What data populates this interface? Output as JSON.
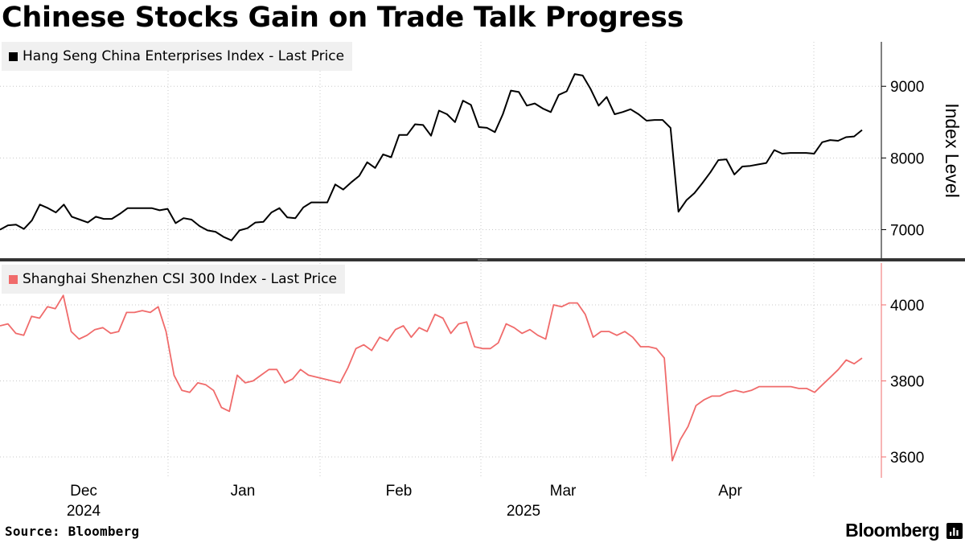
{
  "title": "Chinese Stocks Gain on Trade Talk Progress",
  "source": "Source: Bloomberg",
  "brand": "Bloomberg",
  "colors": {
    "hscei": "#000000",
    "csi300": "#f06b6b",
    "grid": "#c8c8c8",
    "legend_bg": "#f0f0f0"
  },
  "chart_data": [
    {
      "type": "line",
      "legend": "Hang Seng China Enterprises Index - Last Price",
      "ylabel": "Index Level",
      "y_ticks": [
        7000,
        8000,
        9000
      ],
      "y_tick_labels": [
        "7000",
        "8000",
        "9000"
      ],
      "ylim": [
        6590,
        9620
      ],
      "x_month_labels": [
        "Dec",
        "Jan",
        "Feb",
        "Mar",
        "Apr"
      ],
      "x_year_labels": [
        "2024",
        "2025"
      ],
      "values": [
        7000,
        7060,
        7070,
        7010,
        7130,
        7350,
        7300,
        7240,
        7350,
        7180,
        7140,
        7100,
        7180,
        7150,
        7150,
        7220,
        7300,
        7300,
        7300,
        7300,
        7270,
        7290,
        7090,
        7160,
        7140,
        7050,
        6990,
        6970,
        6900,
        6850,
        6990,
        7020,
        7100,
        7110,
        7240,
        7300,
        7170,
        7160,
        7310,
        7380,
        7380,
        7380,
        7630,
        7560,
        7660,
        7750,
        7940,
        7860,
        8050,
        8010,
        8320,
        8320,
        8470,
        8460,
        8310,
        8660,
        8610,
        8500,
        8800,
        8740,
        8430,
        8420,
        8360,
        8610,
        8940,
        8920,
        8730,
        8760,
        8690,
        8640,
        8880,
        8930,
        9170,
        9150,
        8960,
        8730,
        8850,
        8610,
        8640,
        8680,
        8610,
        8520,
        8530,
        8530,
        8420,
        7250,
        7410,
        7510,
        7650,
        7800,
        7970,
        7980,
        7770,
        7880,
        7890,
        7910,
        7930,
        8110,
        8060,
        8070,
        8070,
        8070,
        8060,
        8220,
        8250,
        8240,
        8290,
        8300,
        8390
      ]
    },
    {
      "type": "line",
      "legend": "Shanghai Shenzhen CSI 300 Index - Last Price",
      "y_ticks": [
        3600,
        3800,
        4000
      ],
      "y_tick_labels": [
        "3600",
        "3800",
        "4000"
      ],
      "ylim": [
        3545,
        4110
      ],
      "x_month_labels": [
        "Dec",
        "Jan",
        "Feb",
        "Mar",
        "Apr"
      ],
      "x_year_labels": [
        "2024",
        "2025"
      ],
      "values": [
        3945,
        3950,
        3925,
        3920,
        3970,
        3965,
        3995,
        3990,
        4025,
        3930,
        3910,
        3920,
        3935,
        3940,
        3925,
        3930,
        3980,
        3980,
        3985,
        3980,
        3995,
        3930,
        3815,
        3775,
        3770,
        3795,
        3790,
        3775,
        3730,
        3720,
        3815,
        3795,
        3800,
        3815,
        3830,
        3830,
        3795,
        3805,
        3830,
        3815,
        3810,
        3805,
        3800,
        3795,
        3835,
        3885,
        3895,
        3880,
        3915,
        3905,
        3935,
        3945,
        3915,
        3940,
        3930,
        3975,
        3965,
        3925,
        3950,
        3955,
        3890,
        3885,
        3885,
        3900,
        3950,
        3940,
        3925,
        3935,
        3920,
        3910,
        4000,
        3995,
        4005,
        4005,
        3975,
        3915,
        3930,
        3930,
        3920,
        3930,
        3915,
        3890,
        3890,
        3885,
        3860,
        3590,
        3645,
        3680,
        3735,
        3750,
        3760,
        3760,
        3770,
        3775,
        3770,
        3775,
        3785,
        3785,
        3785,
        3785,
        3785,
        3780,
        3780,
        3770,
        3790,
        3810,
        3830,
        3855,
        3845,
        3860
      ]
    }
  ]
}
